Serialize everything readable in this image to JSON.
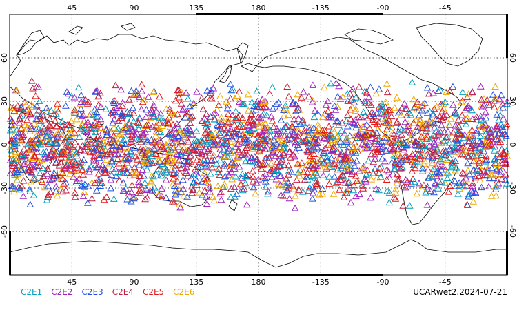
{
  "chart_data": {
    "type": "scatter",
    "projection": "equirectangular",
    "center_longitude": 180,
    "lon_range": [
      0,
      360
    ],
    "lat_range": [
      -90,
      90
    ],
    "x_ticks": [
      "45",
      "90",
      "135",
      "180",
      "-135",
      "-90",
      "-45"
    ],
    "x_tick_values": [
      45,
      90,
      135,
      180,
      225,
      270,
      315
    ],
    "y_ticks": [
      "60",
      "30",
      "0",
      "-30",
      "-60"
    ],
    "y_tick_values": [
      60,
      30,
      0,
      -30,
      -60
    ],
    "grid": true,
    "marker": "open-triangle",
    "observation_band_latitudes": [
      -45,
      45
    ],
    "legend_placement": "bottom-left",
    "series": [
      {
        "name": "C2E1",
        "color": "#00a0c0"
      },
      {
        "name": "C2E2",
        "color": "#a020c0"
      },
      {
        "name": "C2E3",
        "color": "#2050e0"
      },
      {
        "name": "C2E4",
        "color": "#c02040"
      },
      {
        "name": "C2E5",
        "color": "#e01818"
      },
      {
        "name": "C2E6",
        "color": "#f0a800"
      }
    ],
    "caption": "UCARwet2.2024-07-21"
  }
}
